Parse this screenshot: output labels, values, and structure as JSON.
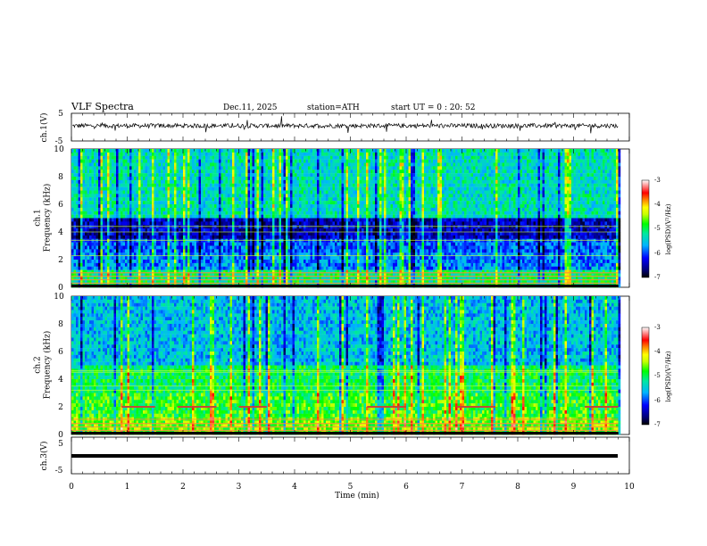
{
  "header": {
    "title": "VLF  Spectra",
    "date": "Dec.11, 2025",
    "station": "station=ATH",
    "start": "start  UT  =   0  : 20: 52"
  },
  "chart_data": [
    {
      "type": "line",
      "panel": "ch1-waveform",
      "ylabel": "ch.1(V)",
      "ylim": [
        -5,
        5
      ],
      "yticks": [
        "5",
        "-5"
      ],
      "xlim": [
        0,
        10
      ],
      "approx_level": 0.5,
      "color": "#000000"
    },
    {
      "type": "heatmap",
      "panel": "ch1-spectrogram",
      "ylabel": "ch.1\nFrequency  (kHz)",
      "ylim": [
        0,
        10
      ],
      "yticks": [
        "0",
        "2",
        "4",
        "6",
        "8",
        "10"
      ],
      "xlim": [
        0,
        10
      ],
      "data_extent_x": [
        0,
        9.8
      ],
      "colorbar": {
        "label": "log(PSD)(V²/Hz)",
        "ticks": [
          "-3",
          "-4",
          "-5",
          "-6",
          "-7"
        ],
        "range": [
          -7,
          -3
        ]
      },
      "features": {
        "dark_bands_khz": [
          [
            3.6,
            5.0
          ]
        ],
        "lines_khz": [
          0.3,
          0.55,
          0.8,
          1.05,
          2.3,
          3.4,
          4.0,
          4.4
        ]
      }
    },
    {
      "type": "heatmap",
      "panel": "ch2-spectrogram",
      "ylabel": "ch.2\nFrequency  (kHz)",
      "ylim": [
        0,
        10
      ],
      "yticks": [
        "0",
        "2",
        "4",
        "6",
        "8",
        "10"
      ],
      "xlim": [
        0,
        10
      ],
      "data_extent_x": [
        0,
        9.8
      ],
      "colorbar": {
        "label": "log(PSD)(V²/Hz)",
        "ticks": [
          "-3",
          "-4",
          "-5",
          "-6",
          "-7"
        ],
        "range": [
          -7,
          -3
        ]
      },
      "features": {
        "lines_khz": [
          0.3,
          0.55,
          0.8,
          1.1,
          3.2,
          3.5,
          4.5,
          4.6
        ],
        "beacon_khz": 2.0,
        "beacon_segments_min": [
          [
            0.9,
            1.5
          ],
          [
            1.9,
            2.6
          ],
          [
            3.0,
            3.5
          ],
          [
            5.3,
            6.0
          ],
          [
            6.9,
            7.6
          ],
          [
            9.2,
            9.8
          ]
        ]
      }
    },
    {
      "type": "line",
      "panel": "ch3-waveform",
      "ylabel": "ch.3(V)",
      "ylim": [
        -5,
        5
      ],
      "yticks": [
        "5",
        "-5"
      ],
      "xlim": [
        0,
        10
      ],
      "approx_level": 0,
      "xlabel": "Time  (min)",
      "xticks": [
        "0",
        "1",
        "2",
        "3",
        "4",
        "5",
        "6",
        "7",
        "8",
        "9",
        "10"
      ],
      "color": "#000000"
    }
  ]
}
